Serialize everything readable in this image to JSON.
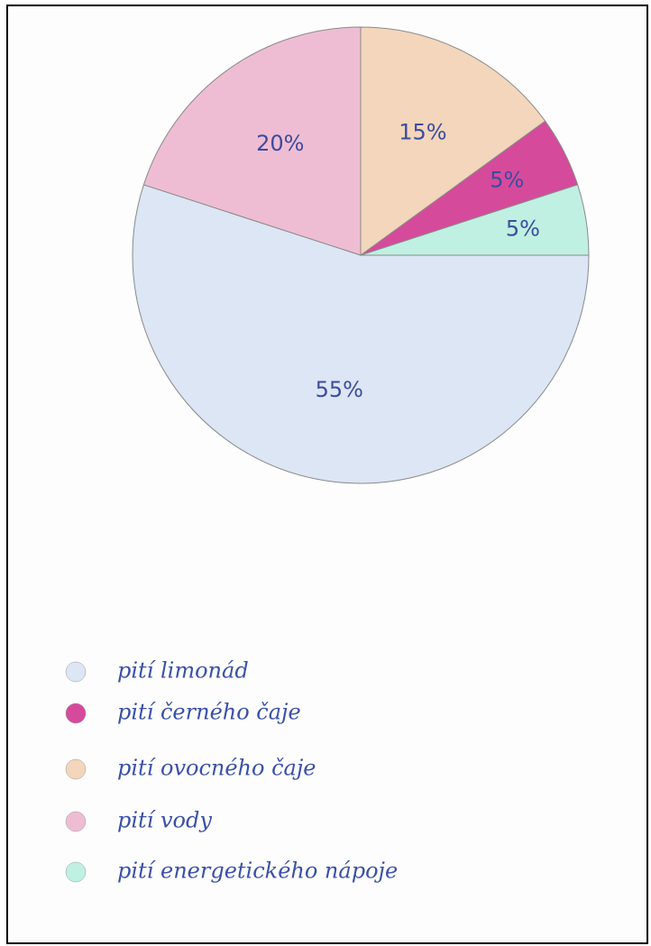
{
  "chart_data": {
    "type": "pie",
    "categories": [
      "pití ovocného čaje",
      "pití černého čaje",
      "pití energetického nápoje",
      "pití limonád",
      "pití vody"
    ],
    "values": [
      15,
      5,
      5,
      55,
      20
    ],
    "value_labels": [
      "15%",
      "5%",
      "5%",
      "55%",
      "20%"
    ],
    "colors": [
      "#f3d6bb",
      "#d64a9c",
      "#bff0e2",
      "#dce6f4",
      "#efbdd3"
    ]
  }
}
